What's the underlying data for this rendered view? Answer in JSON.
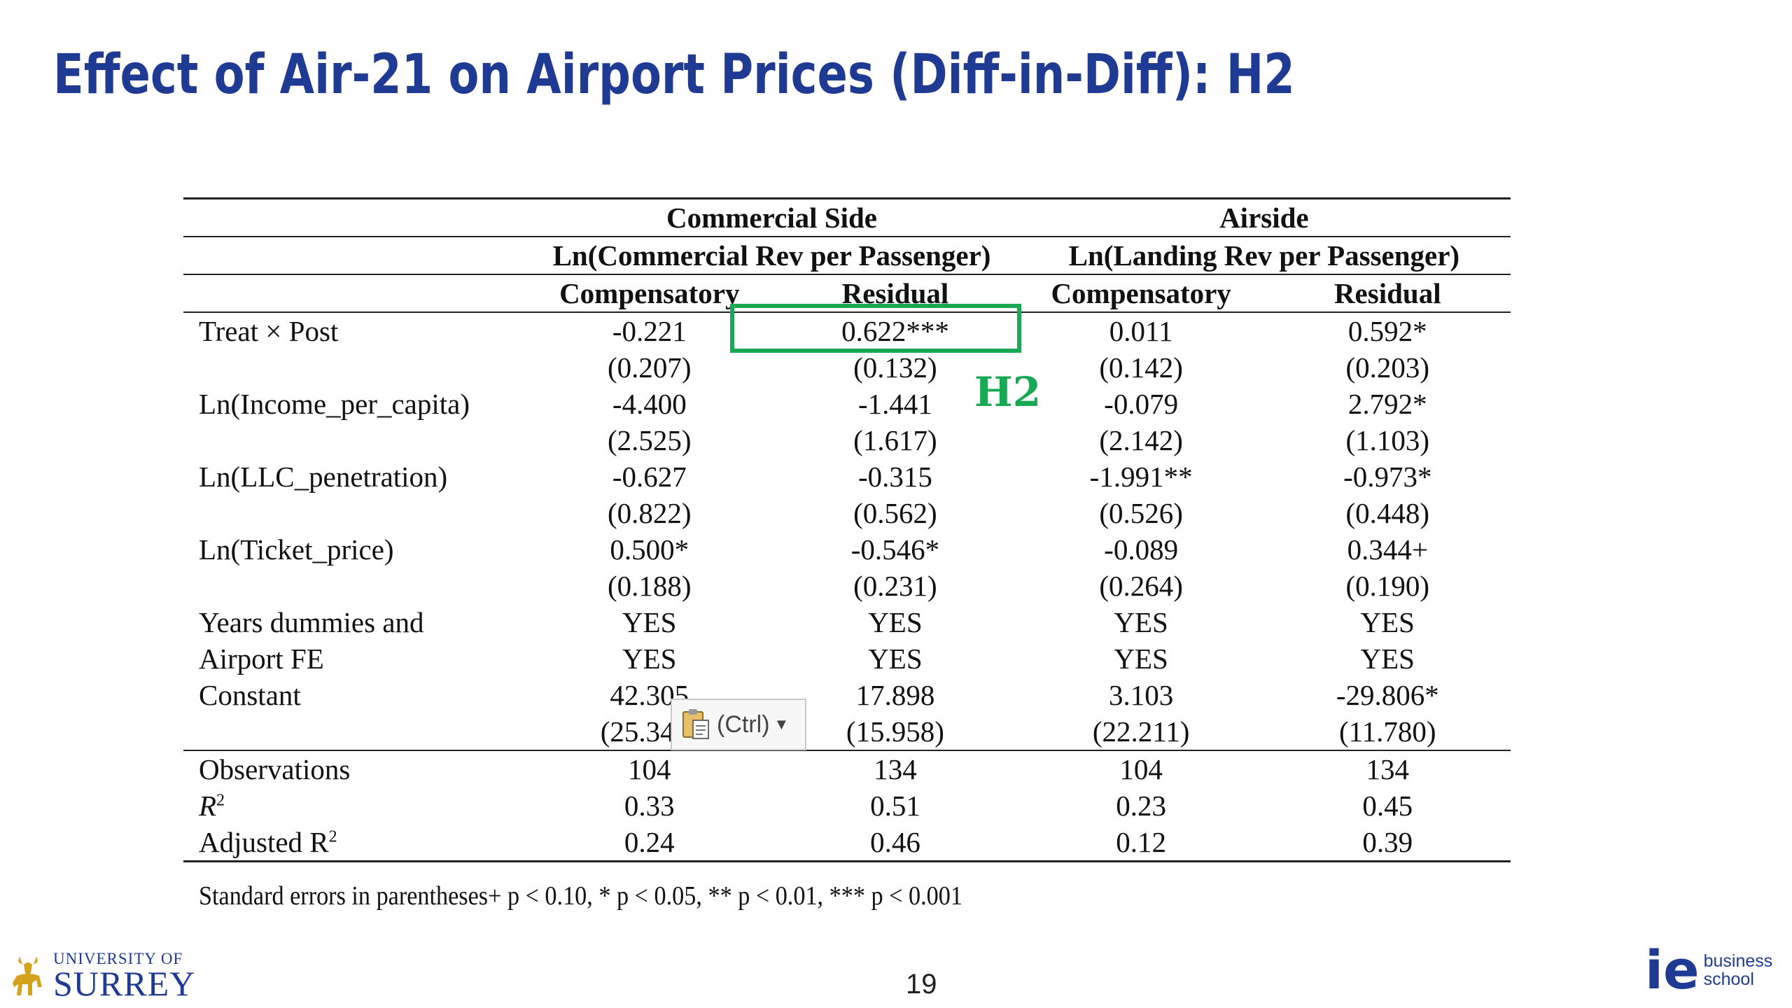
{
  "title": "Effect of Air-21 on Airport Prices (Diff-in-Diff): H2",
  "table": {
    "group_headers": [
      "Commercial Side",
      "Airside"
    ],
    "dep_vars": [
      "Ln(Commercial Rev per Passenger)",
      "Ln(Landing Rev per Passenger)"
    ],
    "columns": [
      "Compensatory",
      "Residual",
      "Compensatory",
      "Residual"
    ],
    "rows": [
      {
        "label": "Treat × Post",
        "values": [
          "-0.221",
          "0.622***",
          "0.011",
          "0.592*"
        ]
      },
      {
        "label": "",
        "values": [
          "(0.207)",
          "(0.132)",
          "(0.142)",
          "(0.203)"
        ]
      },
      {
        "label": "Ln(Income_per_capita)",
        "values": [
          "-4.400",
          "-1.441",
          "-0.079",
          "2.792*"
        ]
      },
      {
        "label": "",
        "values": [
          "(2.525)",
          "(1.617)",
          "(2.142)",
          "(1.103)"
        ]
      },
      {
        "label": "Ln(LLC_penetration)",
        "values": [
          "-0.627",
          "-0.315",
          "-1.991**",
          "-0.973*"
        ]
      },
      {
        "label": "",
        "values": [
          "(0.822)",
          "(0.562)",
          "(0.526)",
          "(0.448)"
        ]
      },
      {
        "label": "Ln(Ticket_price)",
        "values": [
          "0.500*",
          "-0.546*",
          "-0.089",
          "0.344+"
        ]
      },
      {
        "label": "",
        "values": [
          "(0.188)",
          "(0.231)",
          "(0.264)",
          "(0.190)"
        ]
      },
      {
        "label": "Years dummies and",
        "values": [
          "YES",
          "YES",
          "YES",
          "YES"
        ]
      },
      {
        "label": "Airport FE",
        "values": [
          "YES",
          "YES",
          "YES",
          "YES"
        ]
      },
      {
        "label": "Constant",
        "values": [
          "42.305",
          "17.898",
          "3.103",
          "-29.806*"
        ]
      },
      {
        "label": "",
        "values": [
          "(25.348)",
          "(15.958)",
          "(22.211)",
          "(11.780)"
        ]
      }
    ],
    "stats": [
      {
        "label": "Observations",
        "values": [
          "104",
          "134",
          "104",
          "134"
        ]
      },
      {
        "label_base": "R",
        "label_sup": "2",
        "values": [
          "0.33",
          "0.51",
          "0.23",
          "0.45"
        ]
      },
      {
        "label_base": "Adjusted R",
        "label_sup": "2",
        "values": [
          "0.24",
          "0.46",
          "0.12",
          "0.39"
        ]
      }
    ]
  },
  "footnote": "Standard errors in parentheses+ p < 0.10, * p < 0.05, ** p < 0.01, *** p < 0.001",
  "annotation": {
    "label": "H2",
    "color": "#19a955"
  },
  "paste_widget": {
    "label": "(Ctrl)",
    "icon": "clipboard-icon"
  },
  "page_number": "19",
  "logos": {
    "left": {
      "line1": "UNIVERSITY OF",
      "line2": "SURREY",
      "icon": "stag-icon"
    },
    "right": {
      "mark": "ie",
      "line1": "business",
      "line2": "school"
    }
  },
  "colors": {
    "title": "#1f3a93",
    "highlight": "#19a955"
  }
}
